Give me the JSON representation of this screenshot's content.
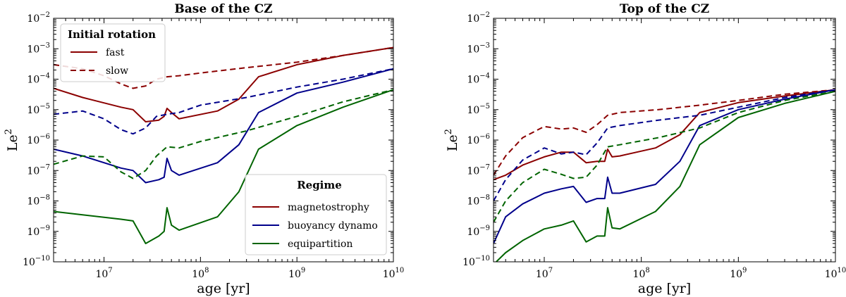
{
  "colors": {
    "magnetostrophy": "#8b0000",
    "buoyancy_dynamo": "#00008b",
    "equipartition": "#006400"
  },
  "chart_data": [
    {
      "type": "line",
      "title": "Base of the CZ",
      "xlabel": "age [yr]",
      "ylabel": "Le2",
      "xscale": "log",
      "yscale": "log",
      "xlim": [
        3000000,
        10000000000
      ],
      "ylim": [
        1e-10,
        0.01
      ],
      "x_ticks": [
        10000000,
        100000000,
        1000000000,
        10000000000
      ],
      "x_tick_labels": [
        {
          "base": "10",
          "exp": "7"
        },
        {
          "base": "10",
          "exp": "8"
        },
        {
          "base": "10",
          "exp": "9"
        },
        {
          "base": "10",
          "exp": "10"
        }
      ],
      "y_ticks": [
        1e-10,
        1e-09,
        1e-08,
        1e-07,
        1e-06,
        1e-05,
        0.0001,
        0.001,
        0.01
      ],
      "y_tick_labels": [
        {
          "base": "10",
          "exp": "−10"
        },
        {
          "base": "10",
          "exp": "−9"
        },
        {
          "base": "10",
          "exp": "−8"
        },
        {
          "base": "10",
          "exp": "−7"
        },
        {
          "base": "10",
          "exp": "−6"
        },
        {
          "base": "10",
          "exp": "−5"
        },
        {
          "base": "10",
          "exp": "−4"
        },
        {
          "base": "10",
          "exp": "−3"
        },
        {
          "base": "10",
          "exp": "−2"
        }
      ],
      "series": [
        {
          "regime": "magnetostrophy",
          "rotation": "fast",
          "x": [
            3000000,
            6000000,
            15000000,
            20000000,
            27000000,
            37000000,
            42000000,
            45000000,
            50000000,
            60000000,
            150000000,
            250000000,
            400000000,
            1000000000,
            3000000000,
            10000000000
          ],
          "y": [
            5e-05,
            2.5e-05,
            1.2e-05,
            1e-05,
            4e-06,
            4.5e-06,
            6e-06,
            1.1e-05,
            8e-06,
            5e-06,
            9e-06,
            2.2e-05,
            0.00012,
            0.0003,
            0.0006,
            0.0011
          ]
        },
        {
          "regime": "magnetostrophy",
          "rotation": "slow",
          "x": [
            3000000,
            6000000,
            10000000,
            15000000,
            20000000,
            27000000,
            35000000,
            45000000,
            60000000,
            100000000,
            300000000,
            1000000000,
            3000000000,
            10000000000
          ],
          "y": [
            0.0003,
            0.00022,
            0.00013,
            7e-05,
            5e-05,
            6e-05,
            0.0001,
            0.00012,
            0.00013,
            0.00016,
            0.00024,
            0.00036,
            0.0006,
            0.0011
          ]
        },
        {
          "regime": "buoyancy_dynamo",
          "rotation": "fast",
          "x": [
            3000000,
            6000000,
            15000000,
            20000000,
            27000000,
            37000000,
            42000000,
            45000000,
            50000000,
            60000000,
            150000000,
            250000000,
            400000000,
            1000000000,
            3000000000,
            10000000000
          ],
          "y": [
            5e-07,
            3e-07,
            1.2e-07,
            1e-07,
            4e-08,
            5e-08,
            6e-08,
            2.5e-07,
            1e-07,
            7e-08,
            1.8e-07,
            7e-07,
            8e-06,
            3.5e-05,
            8e-05,
            0.00022
          ]
        },
        {
          "regime": "buoyancy_dynamo",
          "rotation": "slow",
          "x": [
            3000000,
            6000000,
            10000000,
            15000000,
            20000000,
            27000000,
            35000000,
            45000000,
            60000000,
            100000000,
            300000000,
            1000000000,
            3000000000,
            10000000000
          ],
          "y": [
            7e-06,
            9e-06,
            5e-06,
            2.2e-06,
            1.6e-06,
            2.5e-06,
            6e-06,
            7e-06,
            8e-06,
            1.4e-05,
            2.5e-05,
            5.5e-05,
            0.0001,
            0.00022
          ]
        },
        {
          "regime": "equipartition",
          "rotation": "fast",
          "x": [
            3000000,
            6000000,
            15000000,
            20000000,
            27000000,
            37000000,
            42000000,
            45000000,
            50000000,
            60000000,
            150000000,
            250000000,
            400000000,
            1000000000,
            3000000000,
            10000000000
          ],
          "y": [
            4.5e-09,
            3.5e-09,
            2.5e-09,
            2.2e-09,
            4e-10,
            7e-10,
            1e-09,
            6e-09,
            1.6e-09,
            1.1e-09,
            3e-09,
            2e-08,
            5e-07,
            3e-06,
            1.2e-05,
            4.5e-05
          ]
        },
        {
          "regime": "equipartition",
          "rotation": "slow",
          "x": [
            3000000,
            6000000,
            10000000,
            15000000,
            20000000,
            27000000,
            35000000,
            45000000,
            60000000,
            100000000,
            300000000,
            1000000000,
            3000000000,
            10000000000
          ],
          "y": [
            1.6e-07,
            3e-07,
            2.8e-07,
            9e-08,
            5.5e-08,
            1e-07,
            3e-07,
            6e-07,
            5.5e-07,
            9e-07,
            2e-06,
            6e-06,
            1.8e-05,
            4.5e-05
          ]
        }
      ],
      "legends": [
        {
          "title": "Initial rotation",
          "placement": "upper-left",
          "entries": [
            {
              "label": "fast",
              "style": "solid"
            },
            {
              "label": "slow",
              "style": "dashed"
            }
          ]
        },
        {
          "title": "Regime",
          "placement": "lower-right",
          "entries": [
            {
              "label": "magnetostrophy",
              "regime": "magnetostrophy"
            },
            {
              "label": "buoyancy dynamo",
              "regime": "buoyancy_dynamo"
            },
            {
              "label": "equipartition",
              "regime": "equipartition"
            }
          ]
        }
      ]
    },
    {
      "type": "line",
      "title": "Top of the CZ",
      "xlabel": "age [yr]",
      "ylabel": "Le2",
      "xscale": "log",
      "yscale": "log",
      "xlim": [
        3000000,
        10000000000
      ],
      "ylim": [
        1e-10,
        0.01
      ],
      "x_ticks": [
        10000000,
        100000000,
        1000000000,
        10000000000
      ],
      "x_tick_labels": [
        {
          "base": "10",
          "exp": "7"
        },
        {
          "base": "10",
          "exp": "8"
        },
        {
          "base": "10",
          "exp": "9"
        },
        {
          "base": "10",
          "exp": "10"
        }
      ],
      "y_ticks": [
        1e-10,
        1e-09,
        1e-08,
        1e-07,
        1e-06,
        1e-05,
        0.0001,
        0.001,
        0.01
      ],
      "y_tick_labels": [
        {
          "base": "10",
          "exp": "−10"
        },
        {
          "base": "10",
          "exp": "−9"
        },
        {
          "base": "10",
          "exp": "−8"
        },
        {
          "base": "10",
          "exp": "−7"
        },
        {
          "base": "10",
          "exp": "−6"
        },
        {
          "base": "10",
          "exp": "−5"
        },
        {
          "base": "10",
          "exp": "−4"
        },
        {
          "base": "10",
          "exp": "−3"
        },
        {
          "base": "10",
          "exp": "−2"
        }
      ],
      "series": [
        {
          "regime": "magnetostrophy",
          "rotation": "fast",
          "x": [
            3000000,
            4000000,
            6000000,
            10000000,
            15000000,
            20000000,
            27000000,
            35000000,
            42000000,
            45000000,
            50000000,
            60000000,
            140000000,
            250000000,
            400000000,
            1000000000,
            3000000000,
            10000000000
          ],
          "y": [
            5e-08,
            7e-08,
            1.5e-07,
            2.8e-07,
            4e-07,
            4e-07,
            1.8e-07,
            2e-07,
            2e-07,
            5e-07,
            2.8e-07,
            3e-07,
            5.5e-07,
            1.5e-06,
            8e-06,
            1.7e-05,
            2.8e-05,
            4.5e-05
          ]
        },
        {
          "regime": "magnetostrophy",
          "rotation": "slow",
          "x": [
            3000000,
            4000000,
            6000000,
            10000000,
            15000000,
            20000000,
            27000000,
            35000000,
            45000000,
            60000000,
            150000000,
            400000000,
            1000000000,
            3000000000,
            10000000000
          ],
          "y": [
            7e-08,
            3e-07,
            1.2e-06,
            2.8e-06,
            2.3e-06,
            2.5e-06,
            1.8e-06,
            3.2e-06,
            6.5e-06,
            8e-06,
            1e-05,
            1.4e-05,
            2e-05,
            3.2e-05,
            4.5e-05
          ]
        },
        {
          "regime": "buoyancy_dynamo",
          "rotation": "fast",
          "x": [
            3000000,
            4000000,
            6000000,
            10000000,
            15000000,
            20000000,
            27000000,
            35000000,
            42000000,
            45000000,
            50000000,
            60000000,
            140000000,
            250000000,
            400000000,
            1000000000,
            3000000000,
            10000000000
          ],
          "y": [
            4e-10,
            3e-09,
            8e-09,
            1.8e-08,
            2.5e-08,
            3e-08,
            9e-09,
            1.2e-08,
            1.2e-08,
            6e-08,
            1.8e-08,
            1.8e-08,
            3.5e-08,
            2e-07,
            3e-06,
            1e-05,
            2.2e-05,
            4.5e-05
          ]
        },
        {
          "regime": "buoyancy_dynamo",
          "rotation": "slow",
          "x": [
            3000000,
            4000000,
            6000000,
            10000000,
            15000000,
            20000000,
            27000000,
            35000000,
            45000000,
            60000000,
            150000000,
            400000000,
            1000000000,
            3000000000,
            10000000000
          ],
          "y": [
            1e-08,
            5e-08,
            2.2e-07,
            5.5e-07,
            3.5e-07,
            4e-07,
            3.3e-07,
            8e-07,
            2.5e-06,
            3e-06,
            4.5e-06,
            6.5e-06,
            1.2e-05,
            2.5e-05,
            4.5e-05
          ]
        },
        {
          "regime": "equipartition",
          "rotation": "fast",
          "x": [
            3200000,
            4000000,
            6000000,
            10000000,
            15000000,
            20000000,
            27000000,
            35000000,
            42000000,
            45000000,
            50000000,
            60000000,
            140000000,
            250000000,
            400000000,
            1000000000,
            3000000000,
            10000000000
          ],
          "y": [
            1e-10,
            2e-10,
            5e-10,
            1.2e-09,
            1.6e-09,
            2.2e-09,
            4.5e-10,
            7e-10,
            7e-10,
            6e-09,
            1.3e-09,
            1.2e-09,
            4.5e-09,
            3e-08,
            7e-07,
            5.5e-06,
            1.6e-05,
            4e-05
          ]
        },
        {
          "regime": "equipartition",
          "rotation": "slow",
          "x": [
            3000000,
            4000000,
            6000000,
            10000000,
            15000000,
            20000000,
            27000000,
            35000000,
            45000000,
            60000000,
            150000000,
            400000000,
            1000000000,
            3000000000,
            10000000000
          ],
          "y": [
            2e-09,
            1e-08,
            4e-08,
            1.1e-07,
            7.5e-08,
            5.5e-08,
            6e-08,
            1.5e-07,
            6e-07,
            7e-07,
            1.2e-06,
            2.5e-06,
            8e-06,
            2e-05,
            4e-05
          ]
        }
      ],
      "legends": []
    }
  ]
}
